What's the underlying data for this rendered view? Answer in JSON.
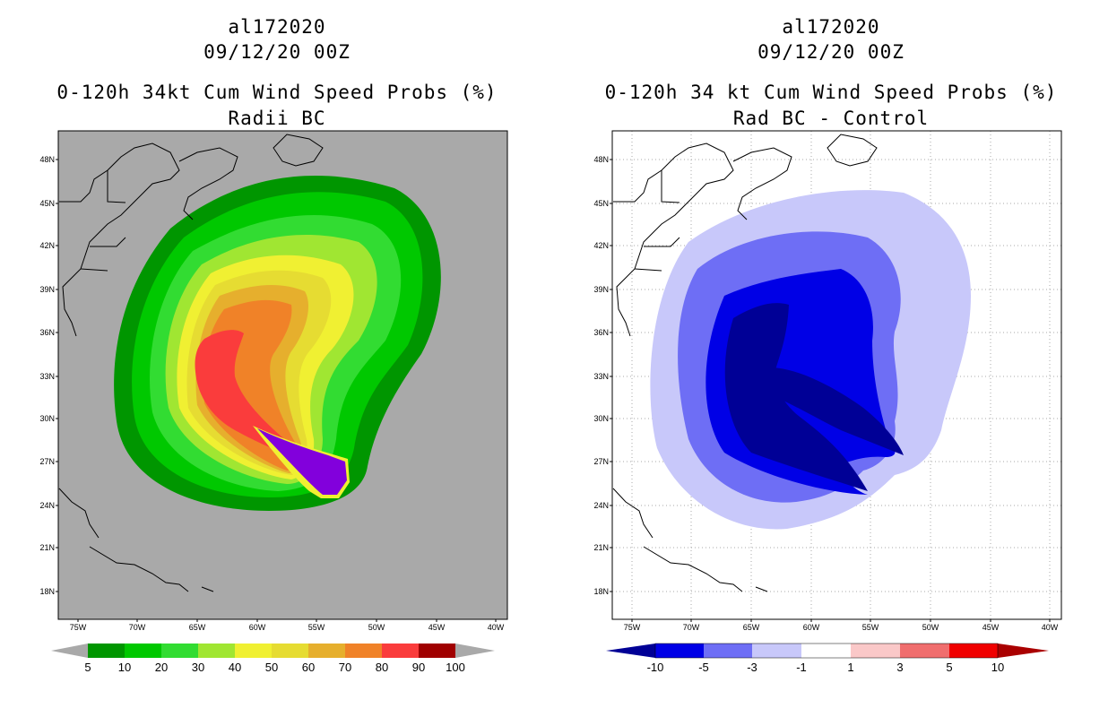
{
  "panels": [
    {
      "storm_id": "al172020",
      "date_time": "09/12/20 00Z",
      "product": "0-120h 34kt Cum Wind Speed Probs (%)",
      "subtitle": "Radii BC",
      "colorbar": {
        "labels": [
          "5",
          "10",
          "20",
          "30",
          "40",
          "50",
          "60",
          "70",
          "80",
          "90",
          "100"
        ],
        "colors": [
          "#009600",
          "#00c800",
          "#32dc32",
          "#a0e632",
          "#f0f032",
          "#e6dc32",
          "#e6af2d",
          "#f08228",
          "#fa3c3c",
          "#a00000",
          "#8200dc"
        ]
      },
      "background": "#a9a9a9"
    },
    {
      "storm_id": "al172020",
      "date_time": "09/12/20 00Z",
      "product": "0-120h 34 kt Cum Wind Speed Probs (%)",
      "subtitle": "Rad BC - Control",
      "colorbar": {
        "labels": [
          "-10",
          "-5",
          "-3",
          "-1",
          "1",
          "3",
          "5",
          "10"
        ],
        "colors": [
          "#000096",
          "#0000e6",
          "#6e6ef5",
          "#c8c8fa",
          "#ffffff",
          "#fac8c8",
          "#f06e6e",
          "#f00000",
          "#aa0000"
        ]
      },
      "background": "#ffffff"
    }
  ],
  "map": {
    "lat_labels": [
      "48N",
      "45N",
      "42N",
      "39N",
      "36N",
      "33N",
      "30N",
      "27N",
      "24N",
      "21N",
      "18N"
    ],
    "lon_labels": [
      "75W",
      "70W",
      "65W",
      "60W",
      "55W",
      "50W",
      "45W",
      "40W"
    ]
  }
}
